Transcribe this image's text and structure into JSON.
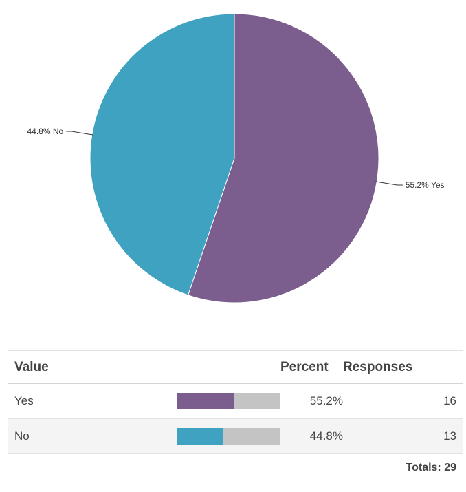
{
  "chart_data": {
    "type": "pie",
    "slices": [
      {
        "label": "Yes",
        "percent": 55.2,
        "value": 16,
        "color": "#7b5e8e",
        "label_text": "55.2% Yes"
      },
      {
        "label": "No",
        "percent": 44.8,
        "value": 13,
        "color": "#3fa2c1",
        "label_text": "44.8% No"
      }
    ],
    "start_angle": "12 o'clock, clockwise"
  },
  "table": {
    "headers": {
      "value": "Value",
      "percent": "Percent",
      "responses": "Responses"
    },
    "rows": [
      {
        "value": "Yes",
        "percent": "55.2%",
        "percent_num": 55.2,
        "responses": "16",
        "color": "#7b5e8e"
      },
      {
        "value": "No",
        "percent": "44.8%",
        "percent_num": 44.8,
        "responses": "13",
        "color": "#3fa2c1"
      }
    ],
    "totals": "Totals: 29",
    "bar_track_color": "#c4c4c4"
  }
}
